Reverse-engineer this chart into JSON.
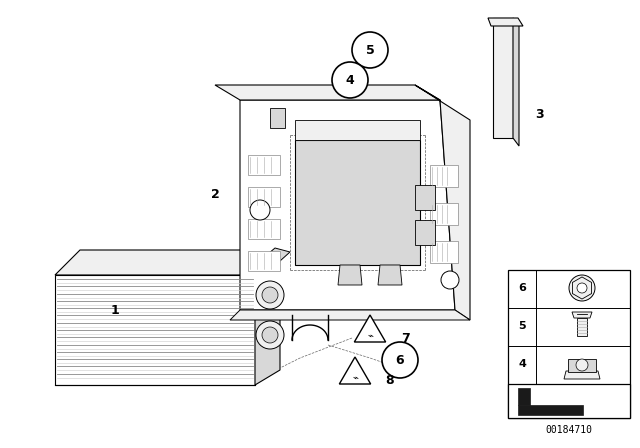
{
  "bg_color": "#ffffff",
  "fig_width": 6.4,
  "fig_height": 4.48,
  "dpi": 100,
  "part_number": "00184710",
  "line_color": "#000000",
  "line_color_light": "#555555",
  "fill_white": "#ffffff",
  "fill_light": "#f0f0f0",
  "fill_mid": "#d8d8d8",
  "fill_dark": "#b0b0b0"
}
